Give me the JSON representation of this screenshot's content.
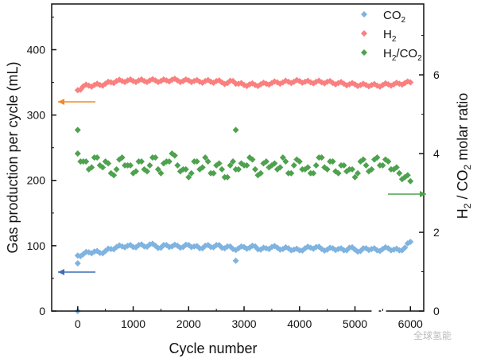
{
  "chart_data": {
    "type": "scatter",
    "xlabel": "Cycle number",
    "ylabel": "Gas production per cycle (mL)",
    "y2label": "H2 / CO2 molar ratio",
    "xlim": [
      -470,
      6240
    ],
    "ylim": [
      0,
      470
    ],
    "y2lim": [
      0,
      7.8
    ],
    "xticks": [
      0,
      1000,
      2000,
      3000,
      4000,
      5000,
      6000
    ],
    "xtick_labels": [
      "0",
      "1000",
      "2000",
      "3000",
      "4000",
      "5000",
      "6000"
    ],
    "yticks": [
      0,
      100,
      200,
      300,
      400
    ],
    "ytick_labels": [
      "0",
      "100",
      "200",
      "300",
      "400"
    ],
    "y2ticks": [
      0,
      2,
      4,
      6
    ],
    "y2tick_labels": [
      "0",
      "2",
      "4",
      "6"
    ],
    "x_axis_break": [
      5300,
      5560
    ],
    "legend_position": "top-right",
    "x": [
      0,
      100,
      200,
      300,
      400,
      500,
      600,
      700,
      800,
      900,
      1000,
      1100,
      1200,
      1300,
      1400,
      1500,
      1600,
      1700,
      1800,
      1900,
      2000,
      2100,
      2200,
      2300,
      2400,
      2500,
      2600,
      2700,
      2800,
      2900,
      3000,
      3100,
      3200,
      3300,
      3400,
      3500,
      3600,
      3700,
      3800,
      3900,
      4000,
      4100,
      4200,
      4300,
      4400,
      4500,
      4600,
      4700,
      4800,
      4900,
      5000,
      5100,
      5200,
      5300,
      5400,
      5500,
      5600,
      5700,
      5800,
      5900,
      6000
    ],
    "series": [
      {
        "name": "CO2",
        "sub": "2",
        "base": "CO",
        "axis": "left",
        "color": "#7fb3e0",
        "values": [
          85,
          87,
          90,
          91,
          89,
          92,
          95,
          98,
          99,
          100,
          98,
          101,
          99,
          102,
          100,
          97,
          101,
          99,
          100,
          98,
          101,
          99,
          96,
          100,
          98,
          101,
          97,
          99,
          95,
          96,
          98,
          97,
          99,
          94,
          96,
          98,
          97,
          95,
          96,
          94,
          93,
          96,
          97,
          98,
          95,
          94,
          96,
          95,
          93,
          97,
          94,
          92,
          96,
          95,
          93,
          95,
          96,
          94,
          93,
          97,
          106
        ],
        "extra_points": [
          [
            0,
            73
          ],
          [
            0,
            0
          ],
          [
            2850,
            77
          ]
        ]
      },
      {
        "name": "H2",
        "sub": "2",
        "base": "H",
        "axis": "left",
        "color": "#fa7f7f",
        "values": [
          338,
          344,
          345,
          346,
          346,
          348,
          350,
          352,
          352,
          353,
          352,
          353,
          352,
          353,
          353,
          352,
          353,
          354,
          353,
          352,
          353,
          352,
          351,
          352,
          351,
          352,
          350,
          349,
          352,
          348,
          346,
          347,
          346,
          347,
          348,
          349,
          350,
          350,
          351,
          351,
          352,
          351,
          350,
          351,
          350,
          351,
          349,
          349,
          348,
          347,
          347,
          346,
          346,
          346,
          345,
          346,
          347,
          347,
          348,
          349,
          350
        ],
        "extra_points": []
      },
      {
        "name": "H2/CO2",
        "axis": "right",
        "color": "#4ea24e",
        "values": [
          4.0,
          3.8,
          3.6,
          3.9,
          3.7,
          3.8,
          3.5,
          3.6,
          3.9,
          3.7,
          3.5,
          3.8,
          3.6,
          3.7,
          3.9,
          3.5,
          3.8,
          4.0,
          3.7,
          3.6,
          3.4,
          3.8,
          3.6,
          3.9,
          3.5,
          3.7,
          3.6,
          3.4,
          3.8,
          3.6,
          3.7,
          3.9,
          3.6,
          3.5,
          3.8,
          3.7,
          3.6,
          3.9,
          3.5,
          3.7,
          3.8,
          3.6,
          3.5,
          3.7,
          3.9,
          3.6,
          3.8,
          3.5,
          3.7,
          3.6,
          3.4,
          3.8,
          3.7,
          3.6,
          3.9,
          3.7,
          3.8,
          3.6,
          3.5,
          3.4,
          3.3
        ],
        "extra_points": [
          [
            0,
            4.6
          ],
          [
            2850,
            4.6
          ]
        ]
      }
    ],
    "annotations": [
      {
        "type": "arrow",
        "direction": "left",
        "axis": "left",
        "color": "#f08a24",
        "refers_to": "H2"
      },
      {
        "type": "arrow",
        "direction": "left",
        "axis": "left",
        "color": "#3c6fb4",
        "refers_to": "CO2"
      },
      {
        "type": "arrow",
        "direction": "right",
        "axis": "right",
        "color": "#4ea24e",
        "refers_to": "H2/CO2"
      }
    ]
  },
  "watermark": "全球氢能"
}
